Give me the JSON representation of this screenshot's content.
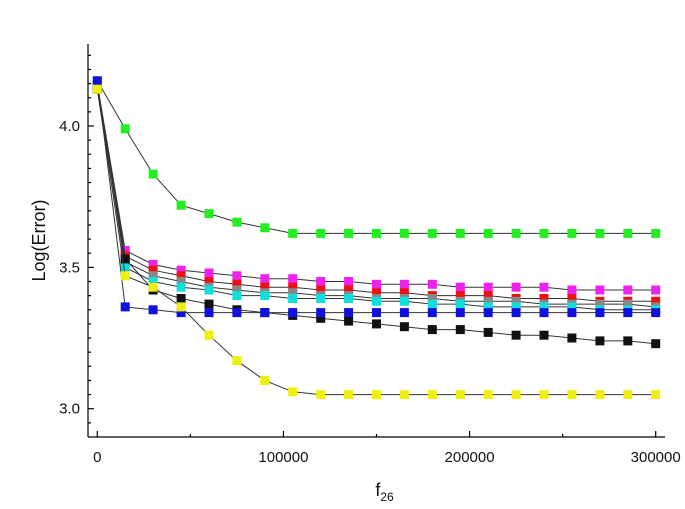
{
  "chart_data": {
    "type": "line",
    "xlabel": "f",
    "xlabel_subscript": "26",
    "ylabel": "Log(Error)",
    "xlim": [
      -5000,
      305000
    ],
    "ylim": [
      2.9,
      4.29
    ],
    "x_ticks": [
      0,
      100000,
      200000,
      300000
    ],
    "x_tick_labels": [
      "0",
      "100000",
      "200000",
      "300000"
    ],
    "y_ticks": [
      3.0,
      3.5,
      4.0
    ],
    "y_tick_labels": [
      "3.0",
      "3.5",
      "4.0"
    ],
    "grid": false,
    "legend": "none",
    "marker": "square",
    "x": [
      0,
      15000,
      30000,
      45000,
      60000,
      75000,
      90000,
      105000,
      120000,
      135000,
      150000,
      165000,
      180000,
      195000,
      210000,
      225000,
      240000,
      255000,
      270000,
      285000,
      300000
    ],
    "series": [
      {
        "color": "#22ee22",
        "values": [
          4.16,
          3.99,
          3.83,
          3.72,
          3.69,
          3.66,
          3.64,
          3.62,
          3.62,
          3.62,
          3.62,
          3.62,
          3.62,
          3.62,
          3.62,
          3.62,
          3.62,
          3.62,
          3.62,
          3.62,
          3.62
        ]
      },
      {
        "color": "#ee22ee",
        "values": [
          4.15,
          3.56,
          3.51,
          3.49,
          3.48,
          3.47,
          3.46,
          3.46,
          3.45,
          3.45,
          3.44,
          3.44,
          3.44,
          3.43,
          3.43,
          3.43,
          3.43,
          3.42,
          3.42,
          3.42,
          3.42
        ]
      },
      {
        "color": "#ee1111",
        "values": [
          4.14,
          3.54,
          3.49,
          3.47,
          3.45,
          3.44,
          3.43,
          3.43,
          3.42,
          3.42,
          3.41,
          3.41,
          3.4,
          3.4,
          3.4,
          3.39,
          3.39,
          3.39,
          3.38,
          3.38,
          3.38
        ]
      },
      {
        "color": "#888888",
        "values": [
          4.14,
          3.52,
          3.47,
          3.45,
          3.43,
          3.42,
          3.41,
          3.41,
          3.4,
          3.4,
          3.39,
          3.39,
          3.39,
          3.38,
          3.38,
          3.38,
          3.37,
          3.37,
          3.37,
          3.37,
          3.36
        ]
      },
      {
        "color": "#11dddd",
        "values": [
          4.15,
          3.5,
          3.45,
          3.43,
          3.42,
          3.4,
          3.4,
          3.39,
          3.39,
          3.39,
          3.38,
          3.38,
          3.37,
          3.37,
          3.36,
          3.36,
          3.36,
          3.36,
          3.35,
          3.35,
          3.35
        ]
      },
      {
        "color": "#111111",
        "values": [
          4.13,
          3.53,
          3.42,
          3.39,
          3.37,
          3.35,
          3.34,
          3.33,
          3.32,
          3.31,
          3.3,
          3.29,
          3.28,
          3.28,
          3.27,
          3.26,
          3.26,
          3.25,
          3.24,
          3.24,
          3.23
        ]
      },
      {
        "color": "#1111dd",
        "values": [
          4.16,
          3.36,
          3.35,
          3.34,
          3.34,
          3.34,
          3.34,
          3.34,
          3.34,
          3.34,
          3.34,
          3.34,
          3.34,
          3.34,
          3.34,
          3.34,
          3.34,
          3.34,
          3.34,
          3.34,
          3.34
        ]
      },
      {
        "color": "#eeee11",
        "values": [
          4.13,
          3.47,
          3.43,
          3.36,
          3.26,
          3.17,
          3.1,
          3.06,
          3.05,
          3.05,
          3.05,
          3.05,
          3.05,
          3.05,
          3.05,
          3.05,
          3.05,
          3.05,
          3.05,
          3.05,
          3.05
        ]
      }
    ]
  }
}
